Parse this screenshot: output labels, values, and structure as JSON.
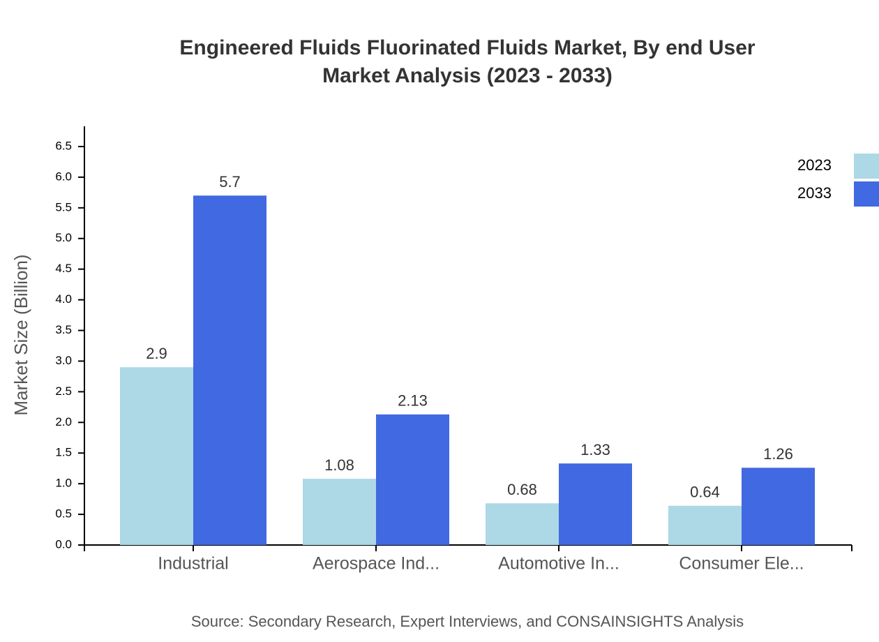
{
  "chart_data": {
    "type": "bar",
    "title": [
      "Engineered Fluids Fluorinated Fluids Market, By end User",
      "Market Analysis (2023 - 2033)"
    ],
    "y_label": "Market Size (Billion)",
    "source": "Source: Secondary Research, Expert Interviews, and CONSAINSIGHTS Analysis",
    "categories": [
      "Industrial",
      "Aerospace Ind...",
      "Automotive In...",
      "Consumer Ele..."
    ],
    "series": [
      {
        "name": "2023",
        "color": "#add8e6",
        "values": [
          2.9,
          1.08,
          0.68,
          0.64
        ]
      },
      {
        "name": "2033",
        "color": "#4169e1",
        "values": [
          5.7,
          2.13,
          1.33,
          1.26
        ]
      }
    ],
    "ylim": [
      0,
      6.83
    ],
    "yticks": [
      {
        "value": 0,
        "label": "0.0"
      },
      0.5,
      {
        "value": 1,
        "label": "1.0"
      },
      1.5,
      {
        "value": 2,
        "label": "2.0"
      },
      2.5,
      {
        "value": 3,
        "label": "3.0"
      },
      3.5,
      {
        "value": 4,
        "label": "4.0"
      },
      4.5,
      {
        "value": 5,
        "label": "5.0"
      },
      5.5,
      {
        "value": 6,
        "label": "6.0"
      },
      6.5
    ],
    "grid": false,
    "legend": "top-right"
  }
}
